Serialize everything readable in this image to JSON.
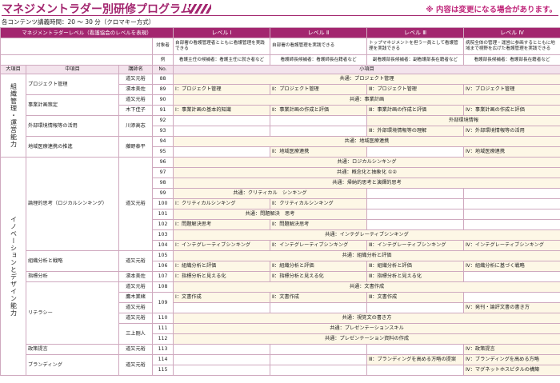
{
  "header": {
    "title": "マネジメントラダー別研修プログラム",
    "note": "※ 内容は変更になる場合があります。",
    "subtitle": "各コンテンツ講義時間：20 ～ 30 分（クロマキー方式）"
  },
  "ladder": {
    "label": "マネジメントラダーレベル（看護協会のレベルを表現）",
    "levels": [
      "レベル Ⅰ",
      "レベル Ⅱ",
      "レベル Ⅲ",
      "レベル Ⅳ"
    ],
    "target_label": "対象者",
    "targets": [
      "自部署の看護管理者とともに看護管理を実践できる",
      "自部署の看護管理を実践できる",
      "トップマネジメントを担う一員として看護管理を実践できる",
      "病院全体の管理・運営に参画するとともに地域まで視野を広げた看護管理を実践できる"
    ],
    "example_label": "例",
    "examples": [
      "看護主任の候補者：看護主任に就き者など",
      "看護師長候補者：看護師長在籍者など",
      "副看護部長候補者：副看護部長在籍者など",
      "看護部長候補者：看護部長在籍者など"
    ]
  },
  "columns": [
    "大項目",
    "中項目",
    "講師名",
    "No.",
    "小項目"
  ],
  "majors": [
    {
      "text": "組織管理・運営能力",
      "span": 8
    },
    {
      "text": "イノベーションとデザイン能力",
      "span": 21
    }
  ],
  "middles": [
    {
      "text": "プロジェクト管理",
      "span": 2
    },
    {
      "text": "事業計画策定",
      "span": 2
    },
    {
      "text": "外部環境情報等の活用",
      "span": 2
    },
    {
      "text": "地域医療連携の推進",
      "span": 2
    },
    {
      "text": "論理的思考（ロジカルシンキング）",
      "span": 9
    },
    {
      "text": "組織分析と戦略",
      "span": 2
    },
    {
      "text": "指標分析",
      "span": 1
    },
    {
      "text": "リテラシー",
      "span": 6
    },
    {
      "text": "政策提言",
      "span": 1
    },
    {
      "text": "ブランディング",
      "span": 2
    }
  ],
  "lecturers": [
    {
      "text": "道又元裕",
      "span": 1
    },
    {
      "text": "濱本美佐",
      "span": 1
    },
    {
      "text": "道又元裕",
      "span": 1
    },
    {
      "text": "木下佳子",
      "span": 1
    },
    {
      "text": "川添高志",
      "span": 2
    },
    {
      "text": "藤野泰平",
      "span": 2
    },
    {
      "text": "道又元裕",
      "span": 9
    },
    {
      "text": "道又元裕",
      "span": 2
    },
    {
      "text": "濱本美佐",
      "span": 1
    },
    {
      "text": "道又元裕",
      "span": 1
    },
    {
      "text": "鷹木業緒",
      "span": 1
    },
    {
      "text": "道又元裕",
      "span": 1
    },
    {
      "text": "道又元裕",
      "span": 1
    },
    {
      "text": "三上剛人",
      "span": 2
    },
    {
      "text": "道又元裕",
      "span": 1
    },
    {
      "text": "道又元裕",
      "span": 2
    }
  ],
  "numbers": [
    {
      "text": "88",
      "span": 1
    },
    {
      "text": "89",
      "span": 1
    },
    {
      "text": "90",
      "span": 1
    },
    {
      "text": "91",
      "span": 1
    },
    {
      "text": "92",
      "span": 1
    },
    {
      "text": "93",
      "span": 1
    },
    {
      "text": "94",
      "span": 1
    },
    {
      "text": "95",
      "span": 1
    },
    {
      "text": "96",
      "span": 1
    },
    {
      "text": "97",
      "span": 1
    },
    {
      "text": "98",
      "span": 1
    },
    {
      "text": "99",
      "span": 1
    },
    {
      "text": "100",
      "span": 1
    },
    {
      "text": "101",
      "span": 1
    },
    {
      "text": "102",
      "span": 1
    },
    {
      "text": "103",
      "span": 1
    },
    {
      "text": "104",
      "span": 1
    },
    {
      "text": "105",
      "span": 1
    },
    {
      "text": "106",
      "span": 1
    },
    {
      "text": "107",
      "span": 1
    },
    {
      "text": "108",
      "span": 1
    },
    {
      "text": "109",
      "span": 2
    },
    {
      "text": "110",
      "span": 1
    },
    {
      "text": "111",
      "span": 1
    },
    {
      "text": "112",
      "span": 1
    },
    {
      "text": "113",
      "span": 1
    },
    {
      "text": "114",
      "span": 1
    },
    {
      "text": "115",
      "span": 1
    }
  ],
  "rows": [
    [
      {
        "text": "共通：プロジェクト管理",
        "span": 4
      }
    ],
    [
      "Ⅰ：プロジェクト管理",
      "Ⅱ：プロジェクト管理",
      "Ⅲ：プロジェクト管理",
      "Ⅳ：プロジェクト管理"
    ],
    [
      {
        "text": "共通：事業計画",
        "span": 4
      }
    ],
    [
      "Ⅰ：事業計画の基本的知識",
      "Ⅱ：事業計画の作成と評価",
      "Ⅲ：事業計画の作成と評価",
      "Ⅳ：事業計画の作成と評価"
    ],
    [
      null,
      null,
      {
        "text": "外部環境情報",
        "span": 2
      }
    ],
    [
      null,
      null,
      "Ⅲ：外部環境情報等の理解",
      "Ⅳ：外部環境情報等の活用"
    ],
    [
      {
        "text": "共通：地域医療連携",
        "span": 4
      }
    ],
    [
      null,
      "Ⅱ：地域医療連携",
      null,
      "Ⅳ：地域医療連携"
    ],
    [
      {
        "text": "共通：ロジカルシンキング",
        "span": 4
      }
    ],
    [
      {
        "text": "共通：概念化と抽象化 ①②",
        "span": 4
      }
    ],
    [
      {
        "text": "共通：帰納的思考と演繹的思考",
        "span": 4
      }
    ],
    [
      {
        "text": "共通：クリティカル　シンキング",
        "span": 2
      },
      null,
      null
    ],
    [
      "Ⅰ：クリティカルシンキング",
      "Ⅱ：クリティカルシンキング",
      null,
      null
    ],
    [
      {
        "text": "共通：問題解決　思考",
        "span": 2
      },
      null,
      null
    ],
    [
      "Ⅰ：問題解決思考",
      "Ⅱ：問題解決思考",
      null,
      null
    ],
    [
      {
        "text": "共通：インテグレーティブシンキング",
        "span": 4
      }
    ],
    [
      "Ⅰ：インテグレーティブシンキング",
      "Ⅱ：インテグレーティブシンキング",
      "Ⅲ：インテグレーティブシンキング",
      "Ⅳ：インテグレーティブシンキング"
    ],
    [
      {
        "text": "共通：組織分析と評価",
        "span": 4
      }
    ],
    [
      "Ⅰ：組織分析と評価",
      "Ⅱ：組織分析と評価",
      "Ⅲ：組織分析と評価",
      "Ⅳ：組織分析に基づく戦略"
    ],
    [
      "Ⅰ：指標分析と見える化",
      "Ⅱ：指標分析と見える化",
      "Ⅲ：指標分析と見える化",
      null
    ],
    [
      {
        "text": "共通：文書作成",
        "span": 4
      }
    ],
    [
      "Ⅰ：文書作成",
      "Ⅱ：文書作成",
      "Ⅲ：文書作成",
      null
    ],
    [
      null,
      null,
      null,
      "Ⅳ：発刊・論評文書の書き方"
    ],
    [
      {
        "text": "共通：視覚文の書き方",
        "span": 4
      }
    ],
    [
      {
        "text": "共通：プレゼンテーションスキル",
        "span": 4
      }
    ],
    [
      {
        "text": "共通：プレゼンテーション資料の作成",
        "span": 4
      }
    ],
    [
      null,
      null,
      null,
      "Ⅳ：政策提言"
    ],
    [
      null,
      null,
      "Ⅲ：ブランディングを高める方略の提案",
      "Ⅳ：ブランディングを高める方略"
    ],
    [
      null,
      null,
      null,
      "Ⅳ：マグネットホスピタルの構築"
    ]
  ]
}
